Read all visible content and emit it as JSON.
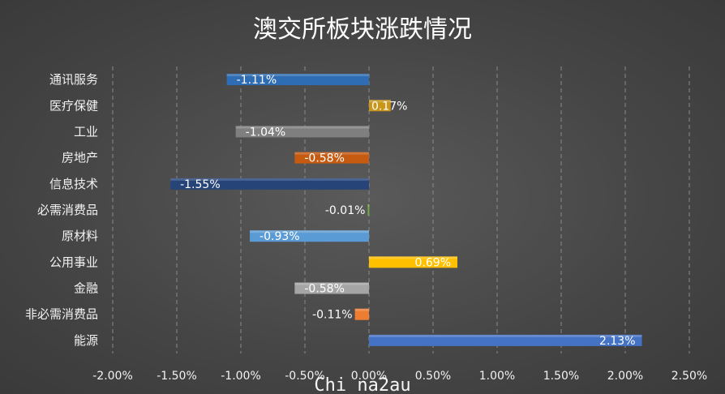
{
  "chart_data": {
    "type": "bar",
    "orientation": "horizontal",
    "title": "澳交所板块涨跌情况",
    "categories": [
      "通讯服务",
      "医疗保健",
      "工业",
      "房地产",
      "信息技术",
      "必需消费品",
      "原材料",
      "公用事业",
      "金融",
      "非必需消费品",
      "能源"
    ],
    "values": [
      -1.11,
      0.17,
      -1.04,
      -0.58,
      -1.55,
      -0.01,
      -0.93,
      0.69,
      -0.58,
      -0.11,
      2.13
    ],
    "data_labels": [
      "-1.11%",
      "0.17%",
      "-1.04%",
      "-0.58%",
      "-1.55%",
      "-0.01%",
      "-0.93%",
      "0.69%",
      "-0.58%",
      "-0.11%",
      "2.13%"
    ],
    "bar_colors": [
      "#2e6db4",
      "#c9961a",
      "#7f7f7f",
      "#c55a11",
      "#264478",
      "#70ad47",
      "#5b9bd5",
      "#ffc000",
      "#a5a5a5",
      "#ed7d31",
      "#4472c4"
    ],
    "xlim": [
      -2.0,
      2.5
    ],
    "x_ticks": [
      "-2.00%",
      "-1.50%",
      "-1.00%",
      "-0.50%",
      "0.00%",
      "0.50%",
      "1.00%",
      "1.50%",
      "2.00%",
      "2.50%"
    ],
    "x_tick_values": [
      -2.0,
      -1.5,
      -1.0,
      -0.5,
      0.0,
      0.5,
      1.0,
      1.5,
      2.0,
      2.5
    ],
    "grid": "vertical-dashed",
    "legend": "none"
  },
  "watermark": "Chi na2au"
}
